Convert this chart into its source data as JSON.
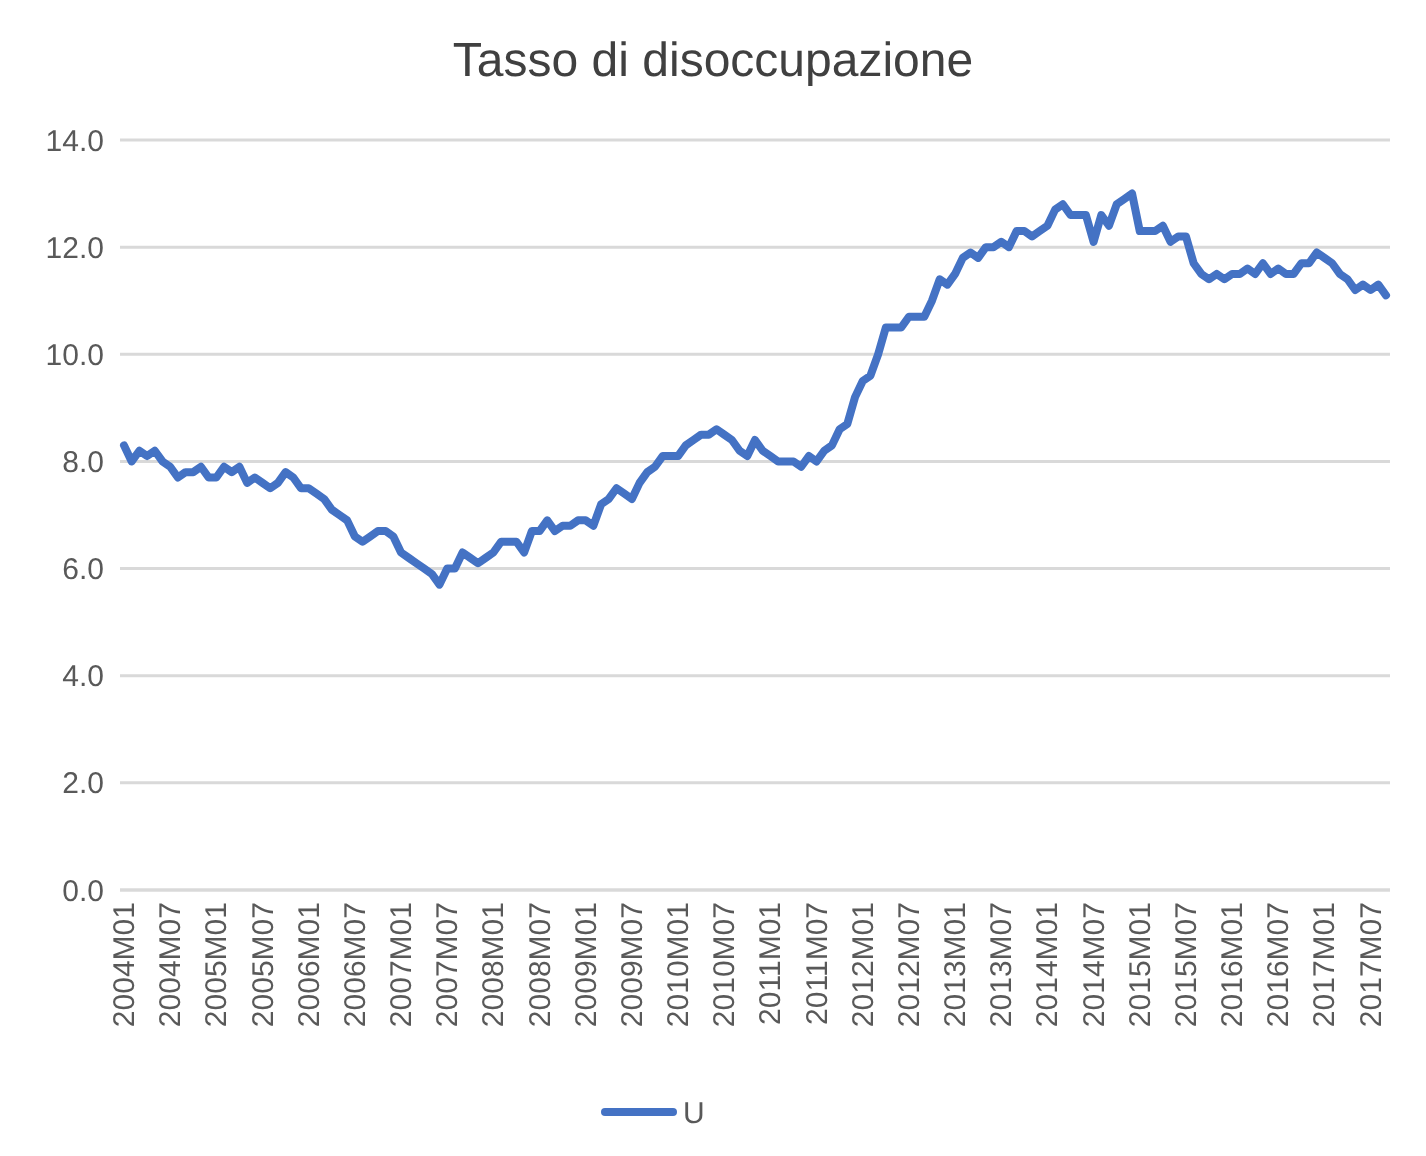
{
  "chart_data": {
    "type": "line",
    "title": "Tasso di disoccupazione",
    "categories": [
      "2004M01",
      null,
      null,
      null,
      null,
      null,
      "2004M07",
      null,
      null,
      null,
      null,
      null,
      "2005M01",
      null,
      null,
      null,
      null,
      null,
      "2005M07",
      null,
      null,
      null,
      null,
      null,
      "2006M01",
      null,
      null,
      null,
      null,
      null,
      "2006M07",
      null,
      null,
      null,
      null,
      null,
      "2007M01",
      null,
      null,
      null,
      null,
      null,
      "2007M07",
      null,
      null,
      null,
      null,
      null,
      "2008M01",
      null,
      null,
      null,
      null,
      null,
      "2008M07",
      null,
      null,
      null,
      null,
      null,
      "2009M01",
      null,
      null,
      null,
      null,
      null,
      "2009M07",
      null,
      null,
      null,
      null,
      null,
      "2010M01",
      null,
      null,
      null,
      null,
      null,
      "2010M07",
      null,
      null,
      null,
      null,
      null,
      "2011M01",
      null,
      null,
      null,
      null,
      null,
      "2011M07",
      null,
      null,
      null,
      null,
      null,
      "2012M01",
      null,
      null,
      null,
      null,
      null,
      "2012M07",
      null,
      null,
      null,
      null,
      null,
      "2013M01",
      null,
      null,
      null,
      null,
      null,
      "2013M07",
      null,
      null,
      null,
      null,
      null,
      "2014M01",
      null,
      null,
      null,
      null,
      null,
      "2014M07",
      null,
      null,
      null,
      null,
      null,
      "2015M01",
      null,
      null,
      null,
      null,
      null,
      "2015M07",
      null,
      null,
      null,
      null,
      null,
      "2016M01",
      null,
      null,
      null,
      null,
      null,
      "2016M07",
      null,
      null,
      null,
      null,
      null,
      "2017M01",
      null,
      null,
      null,
      null,
      null,
      "2017M07",
      null,
      null
    ],
    "series": [
      {
        "name": "U",
        "color": "#4472c4",
        "values": [
          8.3,
          8.0,
          8.2,
          8.1,
          8.2,
          8.0,
          7.9,
          7.7,
          7.8,
          7.8,
          7.9,
          7.7,
          7.7,
          7.9,
          7.8,
          7.9,
          7.6,
          7.7,
          7.6,
          7.5,
          7.6,
          7.8,
          7.7,
          7.5,
          7.5,
          7.4,
          7.3,
          7.1,
          7.0,
          6.9,
          6.6,
          6.5,
          6.6,
          6.7,
          6.7,
          6.6,
          6.3,
          6.2,
          6.1,
          6.0,
          5.9,
          5.7,
          6.0,
          6.0,
          6.3,
          6.2,
          6.1,
          6.2,
          6.3,
          6.5,
          6.5,
          6.5,
          6.3,
          6.7,
          6.7,
          6.9,
          6.7,
          6.8,
          6.8,
          6.9,
          6.9,
          6.8,
          7.2,
          7.3,
          7.5,
          7.4,
          7.3,
          7.6,
          7.8,
          7.9,
          8.1,
          8.1,
          8.1,
          8.3,
          8.4,
          8.5,
          8.5,
          8.6,
          8.5,
          8.4,
          8.2,
          8.1,
          8.4,
          8.2,
          8.1,
          8.0,
          8.0,
          8.0,
          7.9,
          8.1,
          8.0,
          8.2,
          8.3,
          8.6,
          8.7,
          9.2,
          9.5,
          9.6,
          10.0,
          10.5,
          10.5,
          10.5,
          10.7,
          10.7,
          10.7,
          11.0,
          11.4,
          11.3,
          11.5,
          11.8,
          11.9,
          11.8,
          12.0,
          12.0,
          12.1,
          12.0,
          12.3,
          12.3,
          12.2,
          12.3,
          12.4,
          12.7,
          12.8,
          12.6,
          12.6,
          12.6,
          12.1,
          12.6,
          12.4,
          12.8,
          12.9,
          13.0,
          12.3,
          12.3,
          12.3,
          12.4,
          12.1,
          12.2,
          12.2,
          11.7,
          11.5,
          11.4,
          11.5,
          11.4,
          11.5,
          11.5,
          11.6,
          11.5,
          11.7,
          11.5,
          11.6,
          11.5,
          11.5,
          11.7,
          11.7,
          11.9,
          11.8,
          11.7,
          11.5,
          11.4,
          11.2,
          11.3,
          11.2,
          11.3,
          11.1
        ]
      }
    ],
    "ylim": [
      0,
      14
    ],
    "yticks": [
      {
        "value": 0,
        "label": "0.0"
      },
      {
        "value": 2,
        "label": "2.0"
      },
      {
        "value": 4,
        "label": "4.0"
      },
      {
        "value": 6,
        "label": "6.0"
      },
      {
        "value": 8,
        "label": "8.0"
      },
      {
        "value": 10,
        "label": "10.0"
      },
      {
        "value": 12,
        "label": "12.0"
      },
      {
        "value": 14,
        "label": "14.0"
      }
    ],
    "grid": "y",
    "legend": "bottom",
    "marker": "none",
    "line_style": "solid"
  }
}
